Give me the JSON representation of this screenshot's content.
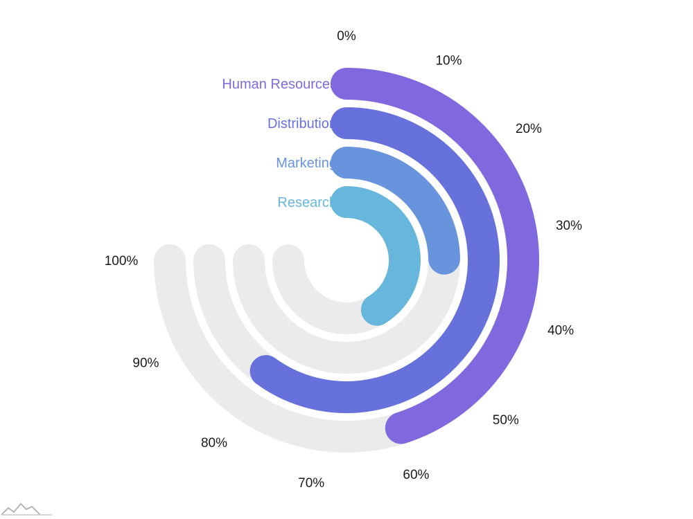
{
  "chart_data": {
    "type": "radial-bar",
    "value_axis": {
      "min": 0,
      "max": 100,
      "unit": "%",
      "ticks": [
        "0%",
        "10%",
        "20%",
        "30%",
        "40%",
        "50%",
        "60%",
        "70%",
        "80%",
        "90%",
        "100%"
      ],
      "sweep_degrees": 270,
      "start": "top"
    },
    "categories": [
      "Human Resources",
      "Distribution",
      "Marketing",
      "Research"
    ],
    "values": [
      60,
      80,
      33,
      55
    ],
    "bar_colors": [
      "#8069df",
      "#6771dc",
      "#6794dc",
      "#67b7dc"
    ],
    "track_color": "#ebebeb",
    "grid": false,
    "legend": "none"
  }
}
